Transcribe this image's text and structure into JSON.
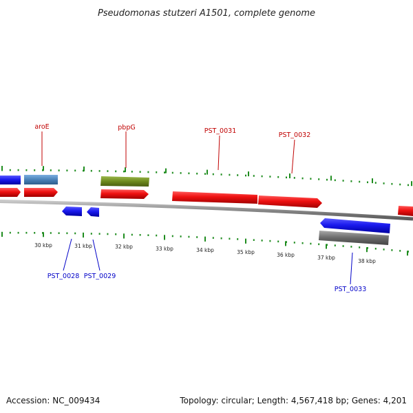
{
  "title": "Pseudomonas stutzeri A1501, complete genome",
  "footer": {
    "accession": "Accession: NC_009434",
    "stats": "Topology: circular; Length: 4,567,418 bp; Genes: 4,201"
  },
  "colors": {
    "forward_cds": "#ee1111",
    "reverse_cds": "#1a1aee",
    "gene_blue": "#1a1aee",
    "gene_steelblue": "#4a82b8",
    "gene_olive": "#6e8a1e",
    "gene_gray": "#6a6a6a",
    "backbone": "#8a8a8a",
    "tick": "#1e8c1e",
    "label_forward": "#c00000",
    "label_reverse": "#0000c8"
  },
  "scale_labels": [
    "30 kbp",
    "31 kbp",
    "32 kbp",
    "33 kbp",
    "34 kbp",
    "35 kbp",
    "36 kbp",
    "37 kbp",
    "38 kbp"
  ],
  "gene_labels": {
    "aroE": "aroE",
    "pbpG": "pbpG",
    "PST_0031": "PST_0031",
    "PST_0032": "PST_0032",
    "PST_0028": "PST_0028",
    "PST_0029": "PST_0029",
    "PST_0033": "PST_0033"
  }
}
